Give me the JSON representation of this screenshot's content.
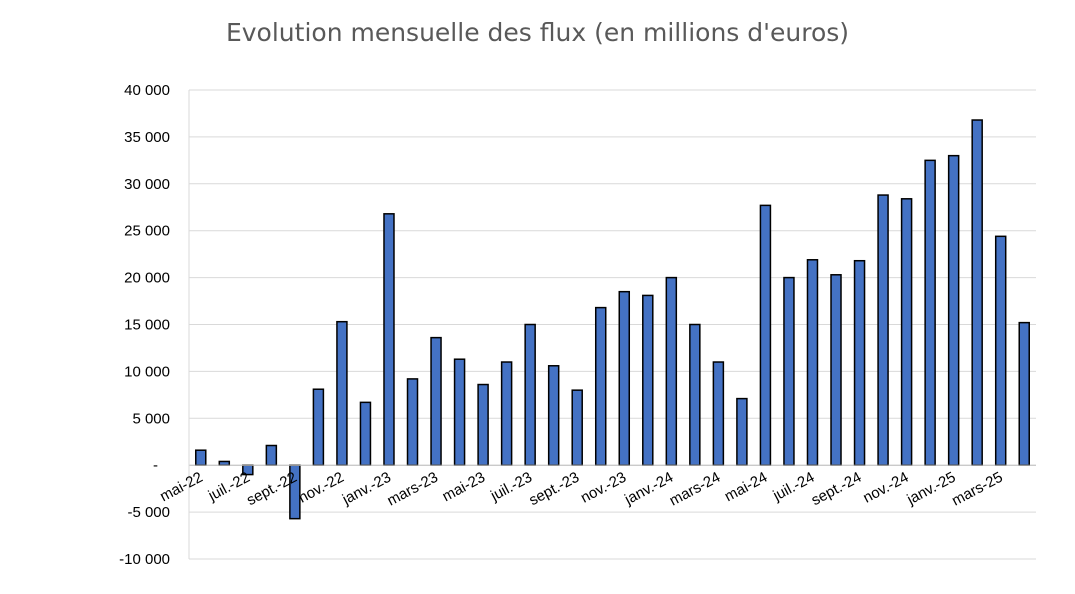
{
  "chart_data": {
    "type": "bar",
    "title": "Evolution mensuelle des flux (en millions d'euros)",
    "xlabel": "",
    "ylabel": "",
    "ylim": [
      -10000,
      40000
    ],
    "yticks": [
      -10000,
      -5000,
      0,
      5000,
      10000,
      15000,
      20000,
      25000,
      30000,
      35000,
      40000
    ],
    "ytick_labels": [
      "-10 000",
      "-5 000",
      "-",
      "5 000",
      "10 000",
      "15 000",
      "20 000",
      "25 000",
      "30 000",
      "35 000",
      "40 000"
    ],
    "grid": true,
    "bar_color": "#4472C4",
    "bar_edge_color": "#000000",
    "categories": [
      "mai-22",
      "juin-22",
      "juil.-22",
      "août-22",
      "sept.-22",
      "oct.-22",
      "nov.-22",
      "déc.-22",
      "janv.-23",
      "févr.-23",
      "mars-23",
      "avr.-23",
      "mai-23",
      "juin-23",
      "juil.-23",
      "août-23",
      "sept.-23",
      "oct.-23",
      "nov.-23",
      "déc.-23",
      "janv.-24",
      "févr.-24",
      "mars-24",
      "avr.-24",
      "mai-24",
      "juin-24",
      "juil.-24",
      "août-24",
      "sept.-24",
      "oct.-24",
      "nov.-24",
      "déc.-24",
      "janv.-25",
      "févr.-25",
      "mars-25",
      "avr.-25"
    ],
    "visible_x_labels": [
      "mai-22",
      "juil.-22",
      "sept.-22",
      "nov.-22",
      "janv.-23",
      "mars-23",
      "mai-23",
      "juil.-23",
      "sept.-23",
      "nov.-23",
      "janv.-24",
      "mars-24",
      "mai-24",
      "juil.-24",
      "sept.-24",
      "nov.-24",
      "janv.-25",
      "mars-25"
    ],
    "values": [
      1600,
      400,
      -1000,
      2100,
      -5700,
      8100,
      15300,
      6700,
      26800,
      9200,
      13600,
      11300,
      8600,
      11000,
      15000,
      10600,
      8000,
      16800,
      18500,
      18100,
      20000,
      15000,
      11000,
      7100,
      27700,
      20000,
      21900,
      20300,
      21800,
      28800,
      28400,
      32500,
      33000,
      36800,
      24400,
      15200
    ]
  }
}
